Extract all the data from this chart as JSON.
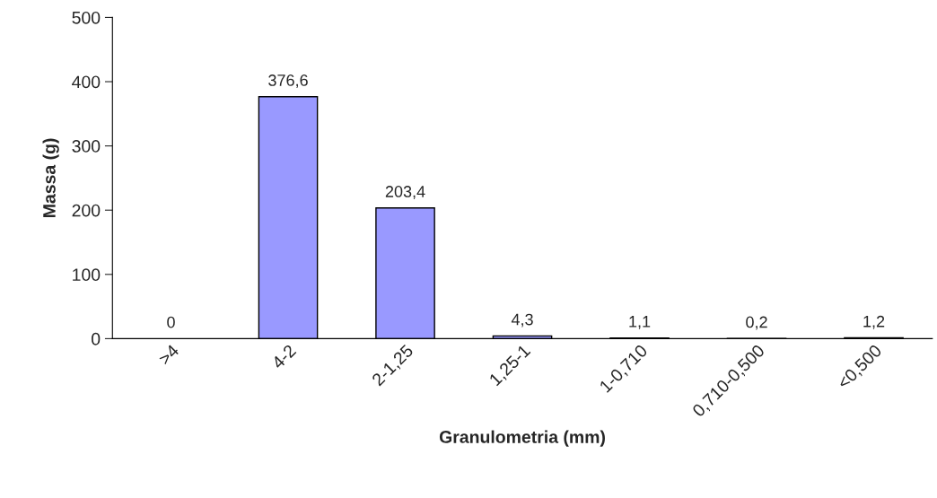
{
  "chart_data": {
    "type": "bar",
    "xlabel": "Granulometria (mm)",
    "ylabel": "Massa (g)",
    "categories": [
      ">4",
      "4-2",
      "2-1,25",
      "1,25-1",
      "1-0,710",
      "0,710-0,500",
      "<0,500"
    ],
    "values": [
      0,
      376.6,
      203.4,
      4.3,
      1.1,
      0.2,
      1.2
    ],
    "value_labels": [
      "0",
      "376,6",
      "203,4",
      "4,3",
      "1,1",
      "0,2",
      "1,2"
    ],
    "color": "#9999ff",
    "ylim": [
      0,
      500
    ],
    "yticks": [
      0,
      100,
      200,
      300,
      400,
      500
    ],
    "grid": false,
    "legend": false
  }
}
